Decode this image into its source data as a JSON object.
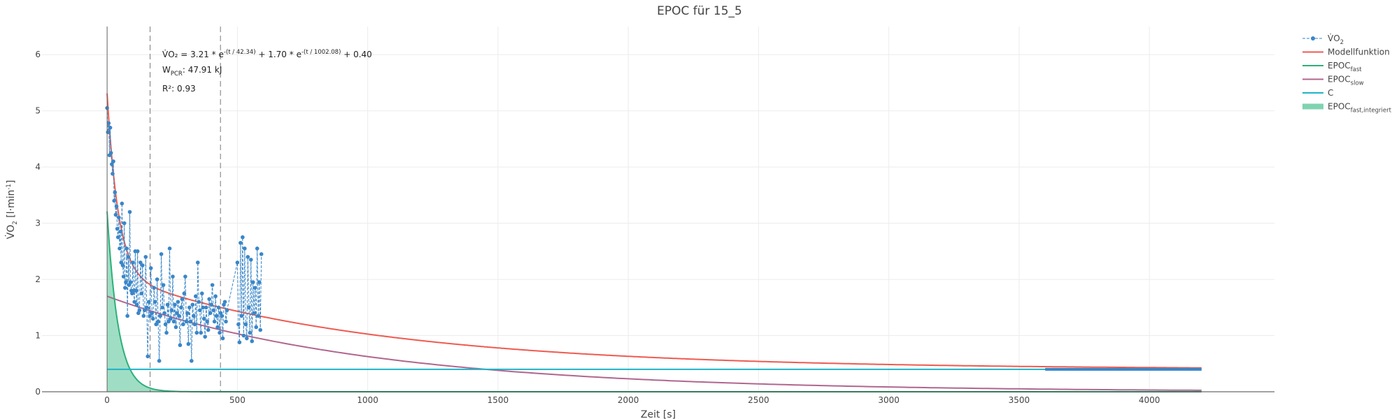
{
  "chart_data": {
    "type": "line",
    "title": "EPOC für 15_5",
    "xlabel": "Zeit [s]",
    "ylabel": {
      "base": "V̇O",
      "sub": "2",
      "rest": " [l·min",
      "sup": "-1",
      "end": "]"
    },
    "xlim": [
      -250,
      4480
    ],
    "ylim": [
      0,
      6.5
    ],
    "xticks": [
      0,
      500,
      1000,
      1500,
      2000,
      2500,
      3000,
      3500,
      4000
    ],
    "yticks": [
      0,
      1,
      2,
      3,
      4,
      5,
      6
    ],
    "grid": true,
    "legend_position": "top-right",
    "model": {
      "a_fast": 3.21,
      "tau_fast": 42.34,
      "a_slow": 1.7,
      "tau_slow": 1002.08,
      "c": 0.4,
      "t_end": 4200
    },
    "vlines": [
      165,
      435
    ],
    "vo2_series": {
      "name": "V̇O2",
      "x": [
        0,
        3,
        6,
        9,
        12,
        15,
        18,
        21,
        24,
        27,
        30,
        33,
        36,
        39,
        42,
        45,
        48,
        51,
        54,
        57,
        60,
        63,
        66,
        69,
        72,
        75,
        78,
        81,
        84,
        87,
        90,
        93,
        96,
        99,
        102,
        105,
        108,
        111,
        114,
        117,
        120,
        124,
        128,
        132,
        136,
        140,
        144,
        148,
        152,
        156,
        160,
        164,
        168,
        172,
        176,
        180,
        184,
        188,
        192,
        196,
        200,
        204,
        208,
        212,
        216,
        220,
        224,
        228,
        232,
        236,
        240,
        244,
        248,
        252,
        256,
        260,
        264,
        268,
        272,
        276,
        280,
        284,
        288,
        292,
        296,
        300,
        304,
        308,
        312,
        316,
        320,
        324,
        328,
        332,
        336,
        340,
        344,
        348,
        352,
        356,
        360,
        364,
        368,
        372,
        376,
        380,
        384,
        388,
        392,
        396,
        400,
        404,
        408,
        412,
        416,
        420,
        424,
        428,
        432,
        436,
        440,
        444,
        448,
        452,
        456,
        460,
        500,
        504,
        508,
        512,
        516,
        520,
        524,
        528,
        532,
        536,
        540,
        544,
        548,
        552,
        556,
        560,
        564,
        568,
        572,
        576,
        580,
        584,
        588,
        592
      ],
      "y": [
        5.05,
        4.62,
        4.78,
        4.21,
        4.7,
        4.25,
        4.05,
        3.88,
        4.1,
        3.4,
        3.55,
        3.15,
        3.3,
        2.9,
        2.75,
        3.1,
        2.55,
        2.85,
        2.3,
        3.35,
        2.25,
        2.05,
        3.0,
        1.85,
        1.95,
        2.55,
        1.35,
        2.4,
        1.9,
        3.2,
        1.95,
        1.8,
        1.75,
        2.3,
        1.8,
        1.6,
        2.5,
        1.8,
        1.55,
        2.5,
        1.4,
        1.45,
        2.3,
        1.75,
        2.25,
        1.35,
        1.45,
        2.4,
        1.5,
        0.63,
        1.6,
        1.35,
        2.2,
        1.4,
        1.3,
        1.85,
        1.6,
        1.2,
        2.0,
        1.25,
        0.55,
        1.35,
        2.45,
        1.5,
        1.9,
        1.4,
        1.2,
        1.05,
        1.55,
        1.25,
        2.55,
        1.3,
        1.45,
        2.05,
        1.25,
        1.55,
        1.15,
        1.4,
        1.6,
        1.35,
        0.83,
        1.5,
        1.65,
        1.2,
        1.75,
        2.05,
        1.25,
        1.4,
        0.85,
        1.5,
        1.25,
        0.55,
        1.55,
        1.35,
        1.2,
        1.7,
        1.05,
        2.3,
        1.6,
        1.45,
        1.05,
        1.75,
        1.5,
        1.3,
        0.98,
        1.5,
        1.25,
        1.1,
        1.65,
        1.4,
        1.55,
        1.9,
        1.45,
        1.25,
        1.7,
        1.35,
        1.15,
        1.5,
        1.05,
        1.4,
        1.35,
        0.95,
        1.55,
        1.6,
        1.25,
        1.45,
        2.3,
        1.2,
        0.88,
        2.65,
        1.35,
        2.75,
        1.0,
        2.55,
        1.2,
        0.95,
        2.4,
        1.5,
        1.05,
        2.35,
        0.9,
        1.95,
        1.4,
        1.85,
        1.15,
        2.55,
        1.35,
        1.95,
        1.1,
        2.45
      ]
    },
    "c_dense_segment": [
      3600,
      4200
    ],
    "legend": [
      {
        "key": "vo2",
        "base": "V̇O",
        "sub": "2",
        "color": "#3a86c8",
        "style": "dashdot-marker"
      },
      {
        "key": "model",
        "base": "Modellfunktion",
        "sub": "",
        "color": "#ef5a50",
        "style": "line"
      },
      {
        "key": "fast",
        "base": "EPOC",
        "sub": "fast",
        "color": "#2db07a",
        "style": "line"
      },
      {
        "key": "slow",
        "base": "EPOC",
        "sub": "slow",
        "color": "#b0668f",
        "style": "line"
      },
      {
        "key": "c",
        "base": "C",
        "sub": "",
        "color": "#1fb3c6",
        "style": "line"
      },
      {
        "key": "fill",
        "base": "EPOC",
        "sub": "fast,integriert",
        "color": "#7fd3b0",
        "style": "fill"
      }
    ],
    "annotations": {
      "equation": {
        "p1": "V̇O₂ = 3.21 * e",
        "s1": "-(t / 42.34)",
        "p2": " + 1.70 * e",
        "s2": "-(t / 1002.08)",
        "p3": " + 0.40"
      },
      "work": {
        "base": "W",
        "sub": "PCR",
        "rest": ": 47.91 kJ"
      },
      "r2": "R²: 0.93"
    }
  }
}
